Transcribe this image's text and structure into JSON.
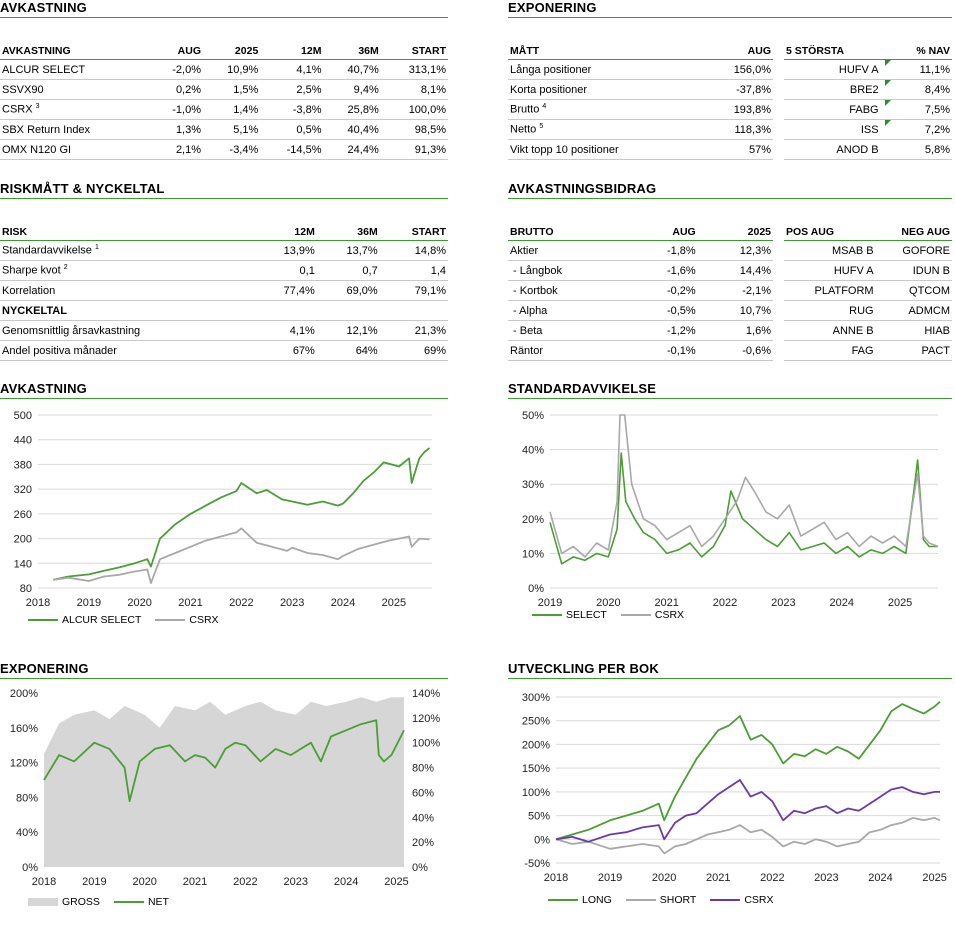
{
  "colors": {
    "green": "#4a9e35",
    "gray": "#a8a8a8",
    "lightgray": "#d6d6d6",
    "purple": "#6a3aa8",
    "rule": "#3c9a35"
  },
  "avkastning_table": {
    "title": "AVKASTNING",
    "headers": [
      "AVKASTNING",
      "AUG",
      "2025",
      "12M",
      "36M",
      "START"
    ],
    "rows": [
      {
        "name": "ALCUR SELECT",
        "sup": "",
        "vals": [
          "-2,0%",
          "10,9%",
          "4,1%",
          "40,7%",
          "313,1%"
        ]
      },
      {
        "name": "SSVX90",
        "sup": "",
        "vals": [
          "0,2%",
          "1,5%",
          "2,5%",
          "9,4%",
          "8,1%"
        ]
      },
      {
        "name": "CSRX",
        "sup": "3",
        "vals": [
          "-1,0%",
          "1,4%",
          "-3,8%",
          "25,8%",
          "100,0%"
        ]
      },
      {
        "name": "SBX Return Index",
        "sup": "",
        "vals": [
          "1,3%",
          "5,1%",
          "0,5%",
          "40,4%",
          "98,5%"
        ]
      },
      {
        "name": "OMX N120 GI",
        "sup": "",
        "vals": [
          "2,1%",
          "-3,4%",
          "-14,5%",
          "24,4%",
          "91,3%"
        ]
      }
    ]
  },
  "exponering_table": {
    "title": "EXPONERING",
    "headers": [
      "MÅTT",
      "AUG"
    ],
    "rows": [
      {
        "name": "Långa positioner",
        "sup": "",
        "val": "156,0%"
      },
      {
        "name": "Korta positioner",
        "sup": "",
        "val": "-37,8%"
      },
      {
        "name": "Brutto",
        "sup": "4",
        "val": "193,8%"
      },
      {
        "name": "Netto",
        "sup": "5",
        "val": "118,3%"
      },
      {
        "name": "Vikt topp 10 positioner",
        "sup": "",
        "val": "57%"
      }
    ],
    "top5_headers": [
      "5 STÖRSTA",
      "% NAV"
    ],
    "top5": [
      {
        "name": "HUFV A",
        "val": "11,1%",
        "flag": true
      },
      {
        "name": "BRE2",
        "val": "8,4%",
        "flag": true
      },
      {
        "name": "FABG",
        "val": "7,5%",
        "flag": true
      },
      {
        "name": "ISS",
        "val": "7,2%",
        "flag": true
      },
      {
        "name": "ANOD B",
        "val": "5,8%",
        "flag": false
      }
    ]
  },
  "risk_table": {
    "title": "RISKMÅTT & NYCKELTAL",
    "headers": [
      "RISK",
      "12M",
      "36M",
      "START"
    ],
    "rows": [
      {
        "name": "Standardavvikelse",
        "sup": "1",
        "vals": [
          "13,9%",
          "13,7%",
          "14,8%"
        ]
      },
      {
        "name": "Sharpe kvot",
        "sup": "2",
        "vals": [
          "0,1",
          "0,7",
          "1,4"
        ]
      },
      {
        "name": "Korrelation",
        "sup": "",
        "vals": [
          "77,4%",
          "69,0%",
          "79,1%"
        ]
      }
    ],
    "subheader": "NYCKELTAL",
    "rows2": [
      {
        "name": "Genomsnittlig årsavkastning",
        "vals": [
          "4,1%",
          "12,1%",
          "21,3%"
        ]
      },
      {
        "name": "Andel positiva månader",
        "vals": [
          "67%",
          "64%",
          "69%"
        ]
      }
    ]
  },
  "bidrag_table": {
    "title": "AVKASTNINGSBIDRAG",
    "headers": [
      "BRUTTO",
      "AUG",
      "2025"
    ],
    "rows": [
      {
        "name": "Aktier",
        "vals": [
          "-1,8%",
          "12,3%"
        ]
      },
      {
        "name": " - Långbok",
        "vals": [
          "-1,6%",
          "14,4%"
        ]
      },
      {
        "name": " - Kortbok",
        "vals": [
          "-0,2%",
          "-2,1%"
        ]
      },
      {
        "name": " - Alpha",
        "vals": [
          "-0,5%",
          "10,7%"
        ]
      },
      {
        "name": " - Beta",
        "vals": [
          "-1,2%",
          "1,6%"
        ]
      },
      {
        "name": "Räntor",
        "vals": [
          "-0,1%",
          "-0,6%"
        ]
      }
    ],
    "pos_headers": [
      "POS AUG",
      "NEG AUG"
    ],
    "pos": [
      [
        "MSAB B",
        "GOFORE"
      ],
      [
        "HUFV A",
        "IDUN B"
      ],
      [
        "PLATFORM",
        "QTCOM"
      ],
      [
        "RUG",
        "ADMCM"
      ],
      [
        "ANNE B",
        "HIAB"
      ],
      [
        "FAG",
        "PACT"
      ]
    ]
  },
  "chart_titles": {
    "avk": "AVKASTNING",
    "std": "STANDARDAVVIKELSE",
    "exp": "EXPONERING",
    "bok": "UTVECKLING PER BOK"
  },
  "chart_data": [
    {
      "id": "avk",
      "type": "line",
      "title": "AVKASTNING",
      "x_ticks": [
        "2018",
        "2019",
        "2020",
        "2021",
        "2022",
        "2023",
        "2024",
        "2025"
      ],
      "y_ticks": [
        "80",
        "140",
        "200",
        "260",
        "320",
        "380",
        "440",
        "500"
      ],
      "ylim": [
        80,
        500
      ],
      "xlim": [
        2018.0,
        2025.75
      ],
      "series": [
        {
          "name": "ALCUR SELECT",
          "color": "#4a9e35",
          "x": [
            2018.3,
            2018.6,
            2019.0,
            2019.3,
            2019.6,
            2019.9,
            2020.15,
            2020.22,
            2020.4,
            2020.7,
            2021.0,
            2021.3,
            2021.6,
            2021.9,
            2022.0,
            2022.3,
            2022.5,
            2022.8,
            2023.0,
            2023.3,
            2023.6,
            2023.9,
            2024.0,
            2024.2,
            2024.4,
            2024.6,
            2024.8,
            2024.95,
            2025.1,
            2025.3,
            2025.35,
            2025.5,
            2025.6,
            2025.7
          ],
          "y": [
            100,
            108,
            113,
            122,
            130,
            140,
            150,
            132,
            200,
            235,
            260,
            280,
            300,
            315,
            335,
            310,
            318,
            295,
            290,
            282,
            290,
            280,
            285,
            310,
            340,
            360,
            385,
            380,
            375,
            395,
            335,
            395,
            410,
            420
          ]
        },
        {
          "name": "CSRX",
          "color": "#a8a8a8",
          "x": [
            2018.3,
            2018.6,
            2019.0,
            2019.3,
            2019.6,
            2019.9,
            2020.15,
            2020.22,
            2020.4,
            2020.7,
            2021.0,
            2021.3,
            2021.6,
            2021.9,
            2022.0,
            2022.3,
            2022.6,
            2022.9,
            2023.0,
            2023.3,
            2023.6,
            2023.9,
            2024.0,
            2024.3,
            2024.6,
            2024.9,
            2025.1,
            2025.3,
            2025.35,
            2025.5,
            2025.7
          ],
          "y": [
            100,
            105,
            97,
            108,
            112,
            120,
            125,
            92,
            150,
            165,
            180,
            195,
            205,
            215,
            225,
            190,
            180,
            170,
            178,
            165,
            160,
            150,
            158,
            175,
            185,
            195,
            200,
            205,
            180,
            200,
            198
          ]
        }
      ]
    },
    {
      "id": "std",
      "type": "line",
      "title": "STANDARDAVVIKELSE",
      "x_ticks": [
        "2019",
        "2020",
        "2021",
        "2022",
        "2023",
        "2024",
        "2025"
      ],
      "y_ticks": [
        "0%",
        "10%",
        "20%",
        "30%",
        "40%",
        "50%"
      ],
      "ylim": [
        0,
        50
      ],
      "xlim": [
        2019.0,
        2025.65
      ],
      "series": [
        {
          "name": "SELECT",
          "color": "#4a9e35",
          "x": [
            2019.0,
            2019.2,
            2019.4,
            2019.6,
            2019.8,
            2020.0,
            2020.15,
            2020.22,
            2020.3,
            2020.45,
            2020.6,
            2020.8,
            2021.0,
            2021.2,
            2021.4,
            2021.6,
            2021.8,
            2022.0,
            2022.1,
            2022.3,
            2022.5,
            2022.7,
            2022.9,
            2023.1,
            2023.3,
            2023.5,
            2023.7,
            2023.9,
            2024.1,
            2024.3,
            2024.5,
            2024.7,
            2024.9,
            2025.1,
            2025.25,
            2025.3,
            2025.4,
            2025.5,
            2025.65
          ],
          "y": [
            19,
            7,
            9,
            8,
            10,
            9,
            17,
            39,
            25,
            20,
            16,
            14,
            10,
            11,
            13,
            9,
            12,
            18,
            28,
            20,
            17,
            14,
            12,
            16,
            11,
            12,
            13,
            10,
            12,
            9,
            11,
            10,
            12,
            10,
            30,
            37,
            14,
            12,
            12
          ]
        },
        {
          "name": "CSRX",
          "color": "#a8a8a8",
          "x": [
            2019.0,
            2019.2,
            2019.4,
            2019.6,
            2019.8,
            2020.0,
            2020.15,
            2020.2,
            2020.28,
            2020.4,
            2020.6,
            2020.8,
            2021.0,
            2021.2,
            2021.4,
            2021.6,
            2021.8,
            2022.0,
            2022.2,
            2022.35,
            2022.5,
            2022.7,
            2022.9,
            2023.1,
            2023.3,
            2023.5,
            2023.7,
            2023.9,
            2024.1,
            2024.3,
            2024.5,
            2024.7,
            2024.9,
            2025.1,
            2025.25,
            2025.3,
            2025.4,
            2025.5,
            2025.65
          ],
          "y": [
            22,
            10,
            12,
            9,
            13,
            11,
            25,
            50,
            50,
            30,
            20,
            18,
            14,
            16,
            18,
            12,
            15,
            20,
            25,
            32,
            28,
            22,
            20,
            24,
            15,
            17,
            19,
            14,
            16,
            12,
            15,
            13,
            15,
            12,
            28,
            33,
            15,
            13,
            12
          ]
        }
      ]
    },
    {
      "id": "exp",
      "type": "area",
      "title": "EXPONERING",
      "x_ticks": [
        "2018",
        "2019",
        "2020",
        "2021",
        "2022",
        "2023",
        "2024",
        "2025"
      ],
      "y_ticks_left": [
        "0%",
        "40%",
        "80%",
        "120%",
        "160%",
        "200%"
      ],
      "y_ticks_right": [
        "0%",
        "20%",
        "40%",
        "60%",
        "80%",
        "100%",
        "120%",
        "140%"
      ],
      "ylim_left": [
        0,
        200
      ],
      "ylim_right": [
        0,
        140
      ],
      "xlim": [
        2018.0,
        2025.15
      ],
      "series": [
        {
          "name": "GROSS",
          "color": "#d6d6d6",
          "axis": "left",
          "x": [
            2018.0,
            2018.3,
            2018.6,
            2019.0,
            2019.3,
            2019.6,
            2020.0,
            2020.3,
            2020.6,
            2021.0,
            2021.3,
            2021.6,
            2022.0,
            2022.3,
            2022.6,
            2023.0,
            2023.3,
            2023.6,
            2024.0,
            2024.3,
            2024.6,
            2024.9,
            2025.15
          ],
          "y": [
            130,
            165,
            175,
            180,
            170,
            185,
            175,
            160,
            185,
            180,
            190,
            175,
            185,
            190,
            180,
            175,
            190,
            185,
            190,
            195,
            190,
            195,
            195
          ]
        },
        {
          "name": "NET",
          "color": "#4a9e35",
          "axis": "right",
          "x": [
            2018.0,
            2018.3,
            2018.6,
            2019.0,
            2019.3,
            2019.6,
            2019.7,
            2019.9,
            2020.2,
            2020.5,
            2020.8,
            2021.0,
            2021.2,
            2021.4,
            2021.6,
            2021.8,
            2022.0,
            2022.3,
            2022.6,
            2022.9,
            2023.1,
            2023.3,
            2023.5,
            2023.7,
            2024.0,
            2024.3,
            2024.6,
            2024.65,
            2024.75,
            2024.9,
            2025.15
          ],
          "y": [
            70,
            90,
            85,
            100,
            95,
            80,
            53,
            85,
            95,
            98,
            85,
            90,
            88,
            80,
            95,
            100,
            98,
            85,
            95,
            90,
            95,
            100,
            85,
            105,
            110,
            115,
            118,
            90,
            85,
            90,
            110
          ]
        }
      ]
    },
    {
      "id": "bok",
      "type": "line",
      "title": "UTVECKLING PER BOK",
      "x_ticks": [
        "2018",
        "2019",
        "2020",
        "2021",
        "2022",
        "2023",
        "2024",
        "2025"
      ],
      "y_ticks": [
        "-50%",
        "0%",
        "50%",
        "100%",
        "150%",
        "200%",
        "250%",
        "300%"
      ],
      "ylim": [
        -50,
        300
      ],
      "xlim": [
        2018.0,
        2025.1
      ],
      "series": [
        {
          "name": "LONG",
          "color": "#4a9e35",
          "x": [
            2018.0,
            2018.3,
            2018.6,
            2019.0,
            2019.3,
            2019.6,
            2019.9,
            2020.0,
            2020.2,
            2020.4,
            2020.6,
            2020.8,
            2021.0,
            2021.2,
            2021.4,
            2021.6,
            2021.8,
            2022.0,
            2022.2,
            2022.4,
            2022.6,
            2022.8,
            2023.0,
            2023.2,
            2023.4,
            2023.6,
            2023.8,
            2024.0,
            2024.2,
            2024.4,
            2024.6,
            2024.8,
            2025.0,
            2025.1
          ],
          "y": [
            0,
            10,
            20,
            40,
            50,
            60,
            75,
            40,
            90,
            130,
            170,
            200,
            230,
            240,
            260,
            210,
            220,
            200,
            160,
            180,
            175,
            190,
            180,
            195,
            185,
            170,
            200,
            230,
            270,
            285,
            275,
            265,
            280,
            290
          ]
        },
        {
          "name": "SHORT",
          "color": "#a8a8a8",
          "x": [
            2018.0,
            2018.3,
            2018.6,
            2019.0,
            2019.3,
            2019.6,
            2019.9,
            2020.0,
            2020.2,
            2020.4,
            2020.6,
            2020.8,
            2021.0,
            2021.2,
            2021.4,
            2021.6,
            2021.8,
            2022.0,
            2022.2,
            2022.4,
            2022.6,
            2022.8,
            2023.0,
            2023.2,
            2023.4,
            2023.6,
            2023.8,
            2024.0,
            2024.2,
            2024.4,
            2024.6,
            2024.8,
            2025.0,
            2025.1
          ],
          "y": [
            0,
            -10,
            -5,
            -20,
            -15,
            -10,
            -15,
            -30,
            -15,
            -10,
            0,
            10,
            15,
            20,
            30,
            15,
            20,
            5,
            -15,
            -5,
            -10,
            0,
            -5,
            -15,
            -10,
            -5,
            15,
            20,
            30,
            35,
            45,
            40,
            45,
            40
          ]
        },
        {
          "name": "CSRX",
          "color": "#6a3aa8",
          "x": [
            2018.0,
            2018.3,
            2018.6,
            2019.0,
            2019.3,
            2019.6,
            2019.9,
            2020.0,
            2020.2,
            2020.4,
            2020.6,
            2020.8,
            2021.0,
            2021.2,
            2021.4,
            2021.6,
            2021.8,
            2022.0,
            2022.2,
            2022.4,
            2022.6,
            2022.8,
            2023.0,
            2023.2,
            2023.4,
            2023.6,
            2023.8,
            2024.0,
            2024.2,
            2024.4,
            2024.6,
            2024.8,
            2025.0,
            2025.1
          ],
          "y": [
            0,
            5,
            -5,
            10,
            15,
            25,
            30,
            0,
            35,
            50,
            55,
            75,
            95,
            110,
            125,
            90,
            100,
            80,
            40,
            60,
            55,
            65,
            70,
            55,
            65,
            60,
            75,
            90,
            105,
            110,
            100,
            95,
            100,
            100
          ]
        }
      ]
    }
  ]
}
